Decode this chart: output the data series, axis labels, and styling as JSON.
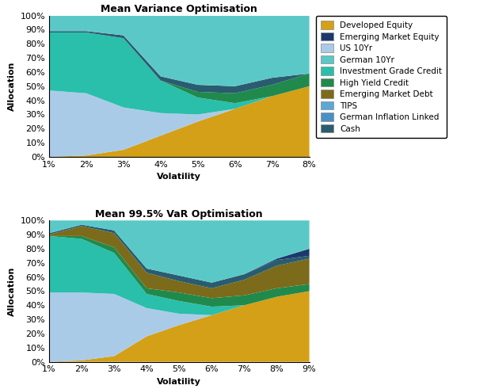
{
  "colors": {
    "Developed Equity": "#D4A017",
    "Emerging Market Equity": "#1B3A6B",
    "US 10Yr": "#AACBE8",
    "German 10Yr": "#5BC8C8",
    "Investment Grade Credit": "#2ABFAA",
    "High Yield Credit": "#1F8A4C",
    "Emerging Market Debt": "#7B6B1A",
    "TIPS": "#5BA8D4",
    "German Inflation Linked": "#4A90C4",
    "Cash": "#2A5C70"
  },
  "legend_order": [
    "Developed Equity",
    "Emerging Market Equity",
    "US 10Yr",
    "German 10Yr",
    "Investment Grade Credit",
    "High Yield Credit",
    "Emerging Market Debt",
    "TIPS",
    "German Inflation Linked",
    "Cash"
  ],
  "layer_order_bottom_to_top": [
    "Developed Equity",
    "US 10Yr",
    "Investment Grade Credit",
    "High Yield Credit",
    "Emerging Market Debt",
    "TIPS",
    "German Inflation Linked",
    "Cash",
    "Emerging Market Equity",
    "German 10Yr"
  ],
  "chart1_x": [
    1,
    2,
    3,
    4,
    5,
    6,
    7,
    8
  ],
  "chart1_xticks": [
    "1%",
    "2%",
    "3%",
    "4%",
    "5%",
    "6%",
    "7%",
    "8%"
  ],
  "chart1": {
    "Developed Equity": [
      0.0,
      0.01,
      0.05,
      0.15,
      0.25,
      0.34,
      0.43,
      0.5
    ],
    "US 10Yr": [
      0.47,
      0.44,
      0.3,
      0.16,
      0.05,
      0.0,
      0.0,
      0.0
    ],
    "Investment Grade Credit": [
      0.41,
      0.43,
      0.49,
      0.23,
      0.12,
      0.04,
      0.0,
      0.0
    ],
    "High Yield Credit": [
      0.0,
      0.0,
      0.0,
      0.0,
      0.04,
      0.07,
      0.08,
      0.09
    ],
    "Emerging Market Debt": [
      0.0,
      0.0,
      0.0,
      0.0,
      0.0,
      0.0,
      0.0,
      0.0
    ],
    "TIPS": [
      0.0,
      0.0,
      0.0,
      0.0,
      0.0,
      0.0,
      0.0,
      0.0
    ],
    "German Inflation Linked": [
      0.0,
      0.0,
      0.0,
      0.0,
      0.0,
      0.0,
      0.0,
      0.0
    ],
    "Cash": [
      0.01,
      0.01,
      0.02,
      0.03,
      0.05,
      0.05,
      0.05,
      0.0
    ],
    "Emerging Market Equity": [
      0.0,
      0.0,
      0.0,
      0.0,
      0.0,
      0.0,
      0.0,
      0.0
    ],
    "German 10Yr": [
      0.11,
      0.11,
      0.14,
      0.43,
      0.49,
      0.5,
      0.44,
      0.41
    ]
  },
  "chart2_x": [
    1,
    2,
    3,
    4,
    5,
    6,
    7,
    8,
    9
  ],
  "chart2_xticks": [
    "1%",
    "2%",
    "3%",
    "4%",
    "5%",
    "6%",
    "7%",
    "8%",
    "9%"
  ],
  "chart2": {
    "Developed Equity": [
      0.0,
      0.01,
      0.04,
      0.18,
      0.26,
      0.33,
      0.4,
      0.46,
      0.5
    ],
    "US 10Yr": [
      0.49,
      0.48,
      0.44,
      0.2,
      0.08,
      0.0,
      0.0,
      0.0,
      0.0
    ],
    "Investment Grade Credit": [
      0.4,
      0.38,
      0.29,
      0.1,
      0.09,
      0.06,
      0.0,
      0.0,
      0.0
    ],
    "High Yield Credit": [
      0.0,
      0.02,
      0.04,
      0.04,
      0.06,
      0.06,
      0.07,
      0.06,
      0.05
    ],
    "Emerging Market Debt": [
      0.01,
      0.07,
      0.1,
      0.11,
      0.08,
      0.07,
      0.11,
      0.16,
      0.18
    ],
    "TIPS": [
      0.0,
      0.0,
      0.0,
      0.0,
      0.0,
      0.0,
      0.0,
      0.0,
      0.0
    ],
    "German Inflation Linked": [
      0.0,
      0.0,
      0.0,
      0.0,
      0.0,
      0.0,
      0.0,
      0.0,
      0.0
    ],
    "Cash": [
      0.01,
      0.01,
      0.02,
      0.03,
      0.04,
      0.04,
      0.04,
      0.04,
      0.02
    ],
    "Emerging Market Equity": [
      0.0,
      0.0,
      0.0,
      0.0,
      0.0,
      0.0,
      0.0,
      0.01,
      0.05
    ],
    "German 10Yr": [
      0.09,
      0.03,
      0.07,
      0.34,
      0.39,
      0.44,
      0.38,
      0.27,
      0.2
    ]
  },
  "title1": "Mean Variance Optimisation",
  "title2": "Mean 99.5% VaR Optimisation",
  "xlabel": "Volatility",
  "ylabel": "Allocation"
}
